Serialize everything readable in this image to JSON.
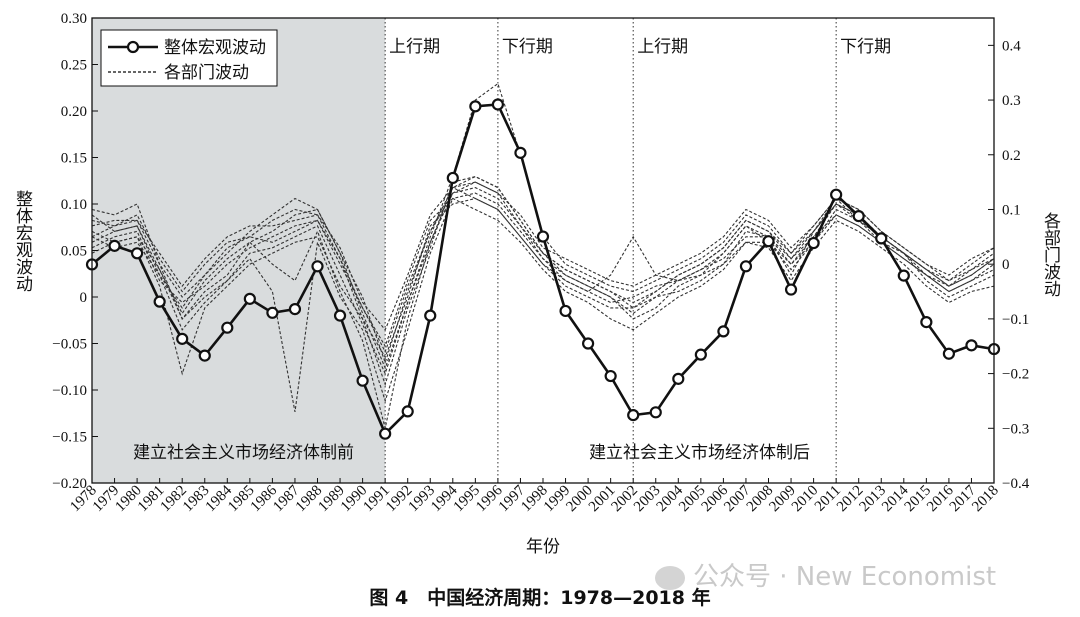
{
  "chart_data": {
    "type": "line",
    "title": "图 4　中国经济周期：1978—2018 年",
    "xlabel": "年份",
    "ylabel_left": "整体宏观波动",
    "ylabel_right": "各部门波动",
    "x": [
      1978,
      1979,
      1980,
      1981,
      1982,
      1983,
      1984,
      1985,
      1986,
      1987,
      1988,
      1989,
      1990,
      1991,
      1992,
      1993,
      1994,
      1995,
      1996,
      1997,
      1998,
      1999,
      2000,
      2001,
      2002,
      2003,
      2004,
      2005,
      2006,
      2007,
      2008,
      2009,
      2010,
      2011,
      2012,
      2013,
      2014,
      2015,
      2016,
      2017,
      2018
    ],
    "x_tick_labels": [
      "1978",
      "1979",
      "1980",
      "1981",
      "1982",
      "1983",
      "1984",
      "1985",
      "1986",
      "1987",
      "1988",
      "1989",
      "1990",
      "1991",
      "1992",
      "1993",
      "1994",
      "1995",
      "1996",
      "1997",
      "1998",
      "1999",
      "2000",
      "2001",
      "2002",
      "2003",
      "2004",
      "2005",
      "2006",
      "2007",
      "2008",
      "2009",
      "2010",
      "2011",
      "2012",
      "2013",
      "2014",
      "2015",
      "2016",
      "2017",
      "2018"
    ],
    "ylim_left": [
      -0.2,
      0.3
    ],
    "y_left_ticks": [
      -0.2,
      -0.15,
      -0.1,
      -0.05,
      0,
      0.05,
      0.1,
      0.15,
      0.2,
      0.25,
      0.3
    ],
    "y_left_tick_labels": [
      "−0.20",
      "−0.15",
      "−0.10",
      "−0.05",
      "0",
      "0.05",
      "0.10",
      "0.15",
      "0.20",
      "0.25",
      "0.30"
    ],
    "ylim_right": [
      -0.4,
      0.45
    ],
    "y_right_ticks": [
      -0.4,
      -0.3,
      -0.2,
      -0.1,
      0,
      0.1,
      0.2,
      0.3,
      0.4
    ],
    "y_right_tick_labels": [
      "−0.4",
      "−0.3",
      "−0.2",
      "−0.1",
      "0",
      "0.1",
      "0.2",
      "0.3",
      "0.4"
    ],
    "legend": {
      "placement": "top-left",
      "entries": [
        {
          "label": "整体宏观波动",
          "style": "solid-circle"
        },
        {
          "label": "各部门波动",
          "style": "dotted"
        }
      ]
    },
    "shaded_region": {
      "x_start": 1978,
      "x_end": 1991,
      "label": "建立社会主义市场经济体制前",
      "color": "#d9dcdd"
    },
    "post_region_label": {
      "x_start": 1991,
      "x_end": 2018,
      "label": "建立社会主义市场经济体制后"
    },
    "phase_lines": [
      {
        "x": 1991,
        "label": "上行期"
      },
      {
        "x": 1996,
        "label": "下行期"
      },
      {
        "x": 2002,
        "label": "上行期"
      },
      {
        "x": 2011,
        "label": "下行期"
      }
    ],
    "main_series": {
      "name": "整体宏观波动",
      "axis": "left",
      "values": [
        0.035,
        0.055,
        0.047,
        -0.005,
        -0.045,
        -0.063,
        -0.033,
        -0.002,
        -0.017,
        -0.013,
        0.033,
        -0.02,
        -0.09,
        -0.147,
        -0.123,
        -0.02,
        0.128,
        0.205,
        0.207,
        0.155,
        0.065,
        -0.015,
        -0.05,
        -0.085,
        -0.127,
        -0.124,
        -0.088,
        -0.062,
        -0.037,
        0.033,
        0.06,
        0.008,
        0.058,
        0.11,
        0.087,
        0.063,
        0.023,
        -0.027,
        -0.061,
        -0.052,
        -0.056
      ]
    },
    "sector_series": {
      "name": "各部门波动",
      "axis": "right",
      "series": [
        {
          "values": [
            0.1,
            0.09,
            0.11,
            0.0,
            -0.1,
            -0.05,
            -0.02,
            0.04,
            0.0,
            -0.03,
            0.06,
            -0.05,
            -0.14,
            -0.3,
            -0.1,
            0.04,
            0.14,
            0.12,
            0.1,
            0.05,
            0.0,
            -0.04,
            -0.06,
            -0.08,
            -0.08,
            -0.06,
            -0.05,
            -0.03,
            0.0,
            0.06,
            0.05,
            -0.02,
            0.06,
            0.12,
            0.08,
            0.04,
            0.02,
            -0.03,
            -0.06,
            -0.04,
            -0.02
          ]
        },
        {
          "values": [
            0.05,
            0.03,
            0.04,
            -0.02,
            -0.08,
            -0.02,
            0.02,
            0.06,
            0.09,
            0.12,
            0.1,
            0.02,
            -0.06,
            -0.18,
            -0.05,
            0.06,
            0.13,
            0.14,
            0.12,
            0.07,
            0.01,
            -0.02,
            -0.04,
            -0.06,
            -0.1,
            -0.08,
            -0.04,
            -0.02,
            0.02,
            0.07,
            0.04,
            0.0,
            0.05,
            0.09,
            0.07,
            0.04,
            0.01,
            -0.02,
            -0.05,
            -0.03,
            0.0
          ]
        },
        {
          "values": [
            0.08,
            0.07,
            0.09,
            0.01,
            -0.05,
            0.0,
            0.04,
            0.05,
            0.08,
            0.1,
            0.09,
            0.01,
            -0.1,
            -0.22,
            -0.08,
            0.03,
            0.15,
            0.16,
            0.14,
            0.08,
            0.02,
            -0.01,
            -0.03,
            -0.05,
            -0.07,
            -0.05,
            -0.02,
            0.0,
            0.03,
            0.08,
            0.06,
            0.01,
            0.06,
            0.11,
            0.09,
            0.05,
            0.02,
            -0.01,
            -0.04,
            -0.01,
            0.02
          ]
        },
        {
          "values": [
            0.03,
            0.05,
            0.06,
            -0.03,
            -0.07,
            -0.04,
            0.0,
            0.03,
            0.05,
            0.07,
            0.08,
            0.0,
            -0.08,
            -0.15,
            -0.03,
            0.08,
            0.12,
            0.13,
            0.11,
            0.06,
            0.01,
            -0.03,
            -0.05,
            -0.07,
            -0.06,
            -0.04,
            -0.03,
            -0.01,
            0.01,
            0.05,
            0.05,
            0.0,
            0.04,
            0.1,
            0.08,
            0.05,
            0.02,
            -0.01,
            -0.03,
            -0.01,
            0.01
          ]
        },
        {
          "values": [
            0.06,
            0.04,
            0.05,
            -0.01,
            -0.1,
            -0.06,
            -0.03,
            0.02,
            0.03,
            0.05,
            0.07,
            -0.02,
            -0.11,
            -0.2,
            -0.07,
            0.05,
            0.16,
            0.3,
            0.33,
            0.2,
            0.05,
            0.0,
            -0.02,
            -0.04,
            -0.05,
            -0.03,
            -0.01,
            0.01,
            0.04,
            0.09,
            0.07,
            0.02,
            0.07,
            0.12,
            0.1,
            0.06,
            0.03,
            0.0,
            -0.03,
            0.0,
            0.03
          ]
        },
        {
          "values": [
            0.04,
            0.06,
            0.07,
            -0.02,
            -0.12,
            -0.07,
            -0.03,
            0.01,
            -0.05,
            -0.27,
            0.04,
            -0.06,
            -0.12,
            -0.25,
            -0.12,
            0.02,
            0.12,
            0.1,
            0.08,
            0.04,
            -0.01,
            -0.05,
            -0.07,
            -0.1,
            -0.12,
            -0.09,
            -0.06,
            -0.04,
            -0.01,
            0.04,
            0.03,
            -0.03,
            0.03,
            0.08,
            0.06,
            0.03,
            0.0,
            -0.04,
            -0.07,
            -0.05,
            -0.04
          ]
        },
        {
          "values": [
            0.02,
            0.04,
            0.05,
            -0.04,
            -0.2,
            -0.08,
            -0.04,
            0.0,
            0.02,
            0.04,
            0.05,
            -0.04,
            -0.1,
            -0.17,
            -0.06,
            0.07,
            0.11,
            0.12,
            0.1,
            0.05,
            0.0,
            -0.03,
            -0.05,
            -0.02,
            0.05,
            -0.02,
            -0.03,
            -0.02,
            0.0,
            0.04,
            0.04,
            -0.01,
            0.04,
            0.09,
            0.07,
            0.04,
            0.01,
            -0.02,
            -0.05,
            -0.03,
            -0.01
          ]
        },
        {
          "values": [
            0.07,
            0.08,
            0.08,
            0.02,
            -0.04,
            0.01,
            0.05,
            0.07,
            0.07,
            0.08,
            0.09,
            0.03,
            -0.07,
            -0.12,
            -0.02,
            0.09,
            0.14,
            0.15,
            0.13,
            0.09,
            0.03,
            0.01,
            -0.01,
            -0.03,
            -0.04,
            -0.02,
            0.0,
            0.02,
            0.05,
            0.1,
            0.08,
            0.03,
            0.07,
            0.12,
            0.1,
            0.06,
            0.03,
            0.0,
            -0.02,
            0.01,
            0.03
          ]
        },
        {
          "values": [
            0.09,
            0.06,
            0.07,
            -0.01,
            -0.09,
            -0.03,
            0.01,
            0.04,
            0.06,
            0.09,
            0.1,
            0.02,
            -0.09,
            -0.19,
            -0.07,
            0.04,
            0.13,
            0.15,
            0.13,
            0.07,
            0.02,
            -0.02,
            -0.04,
            -0.06,
            -0.09,
            -0.06,
            -0.03,
            -0.01,
            0.02,
            0.07,
            0.05,
            0.01,
            0.05,
            0.11,
            0.09,
            0.05,
            0.02,
            -0.02,
            -0.04,
            -0.02,
            0.01
          ]
        },
        {
          "values": [
            0.05,
            0.07,
            0.08,
            0.0,
            -0.06,
            -0.02,
            0.03,
            0.05,
            0.04,
            0.06,
            0.08,
            0.01,
            -0.08,
            -0.16,
            -0.04,
            0.06,
            0.14,
            0.16,
            0.14,
            0.08,
            0.02,
            -0.01,
            -0.03,
            -0.05,
            -0.08,
            -0.05,
            -0.02,
            0.0,
            0.03,
            0.08,
            0.06,
            0.02,
            0.06,
            0.11,
            0.08,
            0.05,
            0.02,
            -0.01,
            -0.04,
            -0.02,
            0.01
          ]
        }
      ]
    },
    "grid": false
  },
  "watermark": {
    "text": "公众号 · New Economist"
  }
}
